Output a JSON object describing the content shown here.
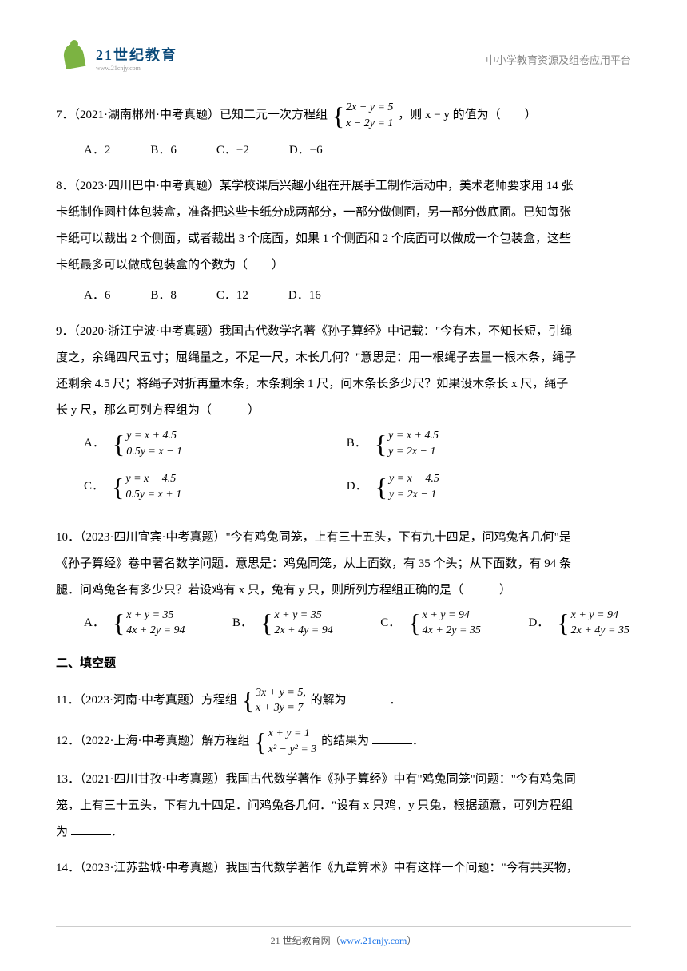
{
  "header": {
    "logo_text": "21世纪教育",
    "logo_sub": "www.21cnjy.com",
    "right_text": "中小学教育资源及组卷应用平台"
  },
  "questions": {
    "q7": {
      "prefix": "7．（2021·湖南郴州·中考真题）已知二元一次方程组",
      "eq1": "2x − y = 5",
      "eq2": "x − 2y = 1",
      "suffix": "，则 x − y 的值为（　　）",
      "optA": "A．2",
      "optB": "B．6",
      "optC": "C．−2",
      "optD": "D．−6"
    },
    "q8": {
      "line1": "8．（2023·四川巴中·中考真题）某学校课后兴趣小组在开展手工制作活动中，美术老师要求用 14 张",
      "line2": "卡纸制作圆柱体包装盒，准备把这些卡纸分成两部分，一部分做侧面，另一部分做底面。已知每张",
      "line3": "卡纸可以裁出 2 个侧面，或者裁出 3 个底面，如果 1 个侧面和 2 个底面可以做成一个包装盒，这些",
      "line4": "卡纸最多可以做成包装盒的个数为（　　）",
      "optA": "A．6",
      "optB": "B．8",
      "optC": "C．12",
      "optD": "D．16"
    },
    "q9": {
      "line1": "9．（2020·浙江宁波·中考真题）我国古代数学名著《孙子算经》中记载：\"今有木，不知长短，引绳",
      "line2": "度之，余绳四尺五寸；屈绳量之，不足一尺，木长几何？\"意思是：用一根绳子去量一根木条，绳子",
      "line3": "还剩余 4.5 尺；将绳子对折再量木条，木条剩余 1 尺，问木条长多少尺？如果设木条长 x 尺，绳子",
      "line4": "长 y 尺，那么可列方程组为（　　　）",
      "optA": {
        "label": "A．",
        "eq1": "y = x + 4.5",
        "eq2": "0.5y = x − 1"
      },
      "optB": {
        "label": "B．",
        "eq1": "y = x + 4.5",
        "eq2": "y = 2x − 1"
      },
      "optC": {
        "label": "C．",
        "eq1": "y = x − 4.5",
        "eq2": "0.5y = x + 1"
      },
      "optD": {
        "label": "D．",
        "eq1": "y = x − 4.5",
        "eq2": "y = 2x − 1"
      }
    },
    "q10": {
      "line1": "10．（2023·四川宜宾·中考真题）\"今有鸡兔同笼，上有三十五头，下有九十四足，问鸡兔各几何\"是",
      "line2": "《孙子算经》卷中著名数学问题．意思是：鸡兔同笼，从上面数，有 35 个头；从下面数，有 94 条",
      "line3": "腿．问鸡兔各有多少只？若设鸡有 x 只，兔有 y 只，则所列方程组正确的是（　　　）",
      "optA": {
        "label": "A．",
        "eq1": "x + y = 35",
        "eq2": "4x + 2y = 94"
      },
      "optB": {
        "label": "B．",
        "eq1": "x + y = 35",
        "eq2": "2x + 4y = 94"
      },
      "optC": {
        "label": "C．",
        "eq1": "x + y = 94",
        "eq2": "4x + 2y = 35"
      },
      "optD": {
        "label": "D．",
        "eq1": "x + y = 94",
        "eq2": "2x + 4y = 35"
      }
    },
    "section2": "二、填空题",
    "q11": {
      "prefix": "11．（2023·河南·中考真题）方程组",
      "eq1": "3x + y = 5,",
      "eq2": "x + 3y = 7",
      "suffix": "的解为"
    },
    "q12": {
      "prefix": "12．（2022·上海·中考真题）解方程组",
      "eq1": "x + y = 1",
      "eq2": "x² − y² = 3",
      "suffix": " 的结果为"
    },
    "q13": {
      "line1": "13．（2021·四川甘孜·中考真题）我国古代数学著作《孙子算经》中有\"鸡兔同笼\"问题：\"今有鸡兔同",
      "line2": "笼，上有三十五头，下有九十四足．问鸡兔各几何．\"设有 x 只鸡，y 只兔，根据题意，可列方程组",
      "line3": "为"
    },
    "q14": {
      "line1": "14．（2023·江苏盐城·中考真题）我国古代数学著作《九章算术》中有这样一个问题：\"今有共买物，"
    }
  },
  "footer": {
    "text1": "21 世纪教育网（",
    "link": "www.21cnjy.com",
    "text2": "）"
  }
}
